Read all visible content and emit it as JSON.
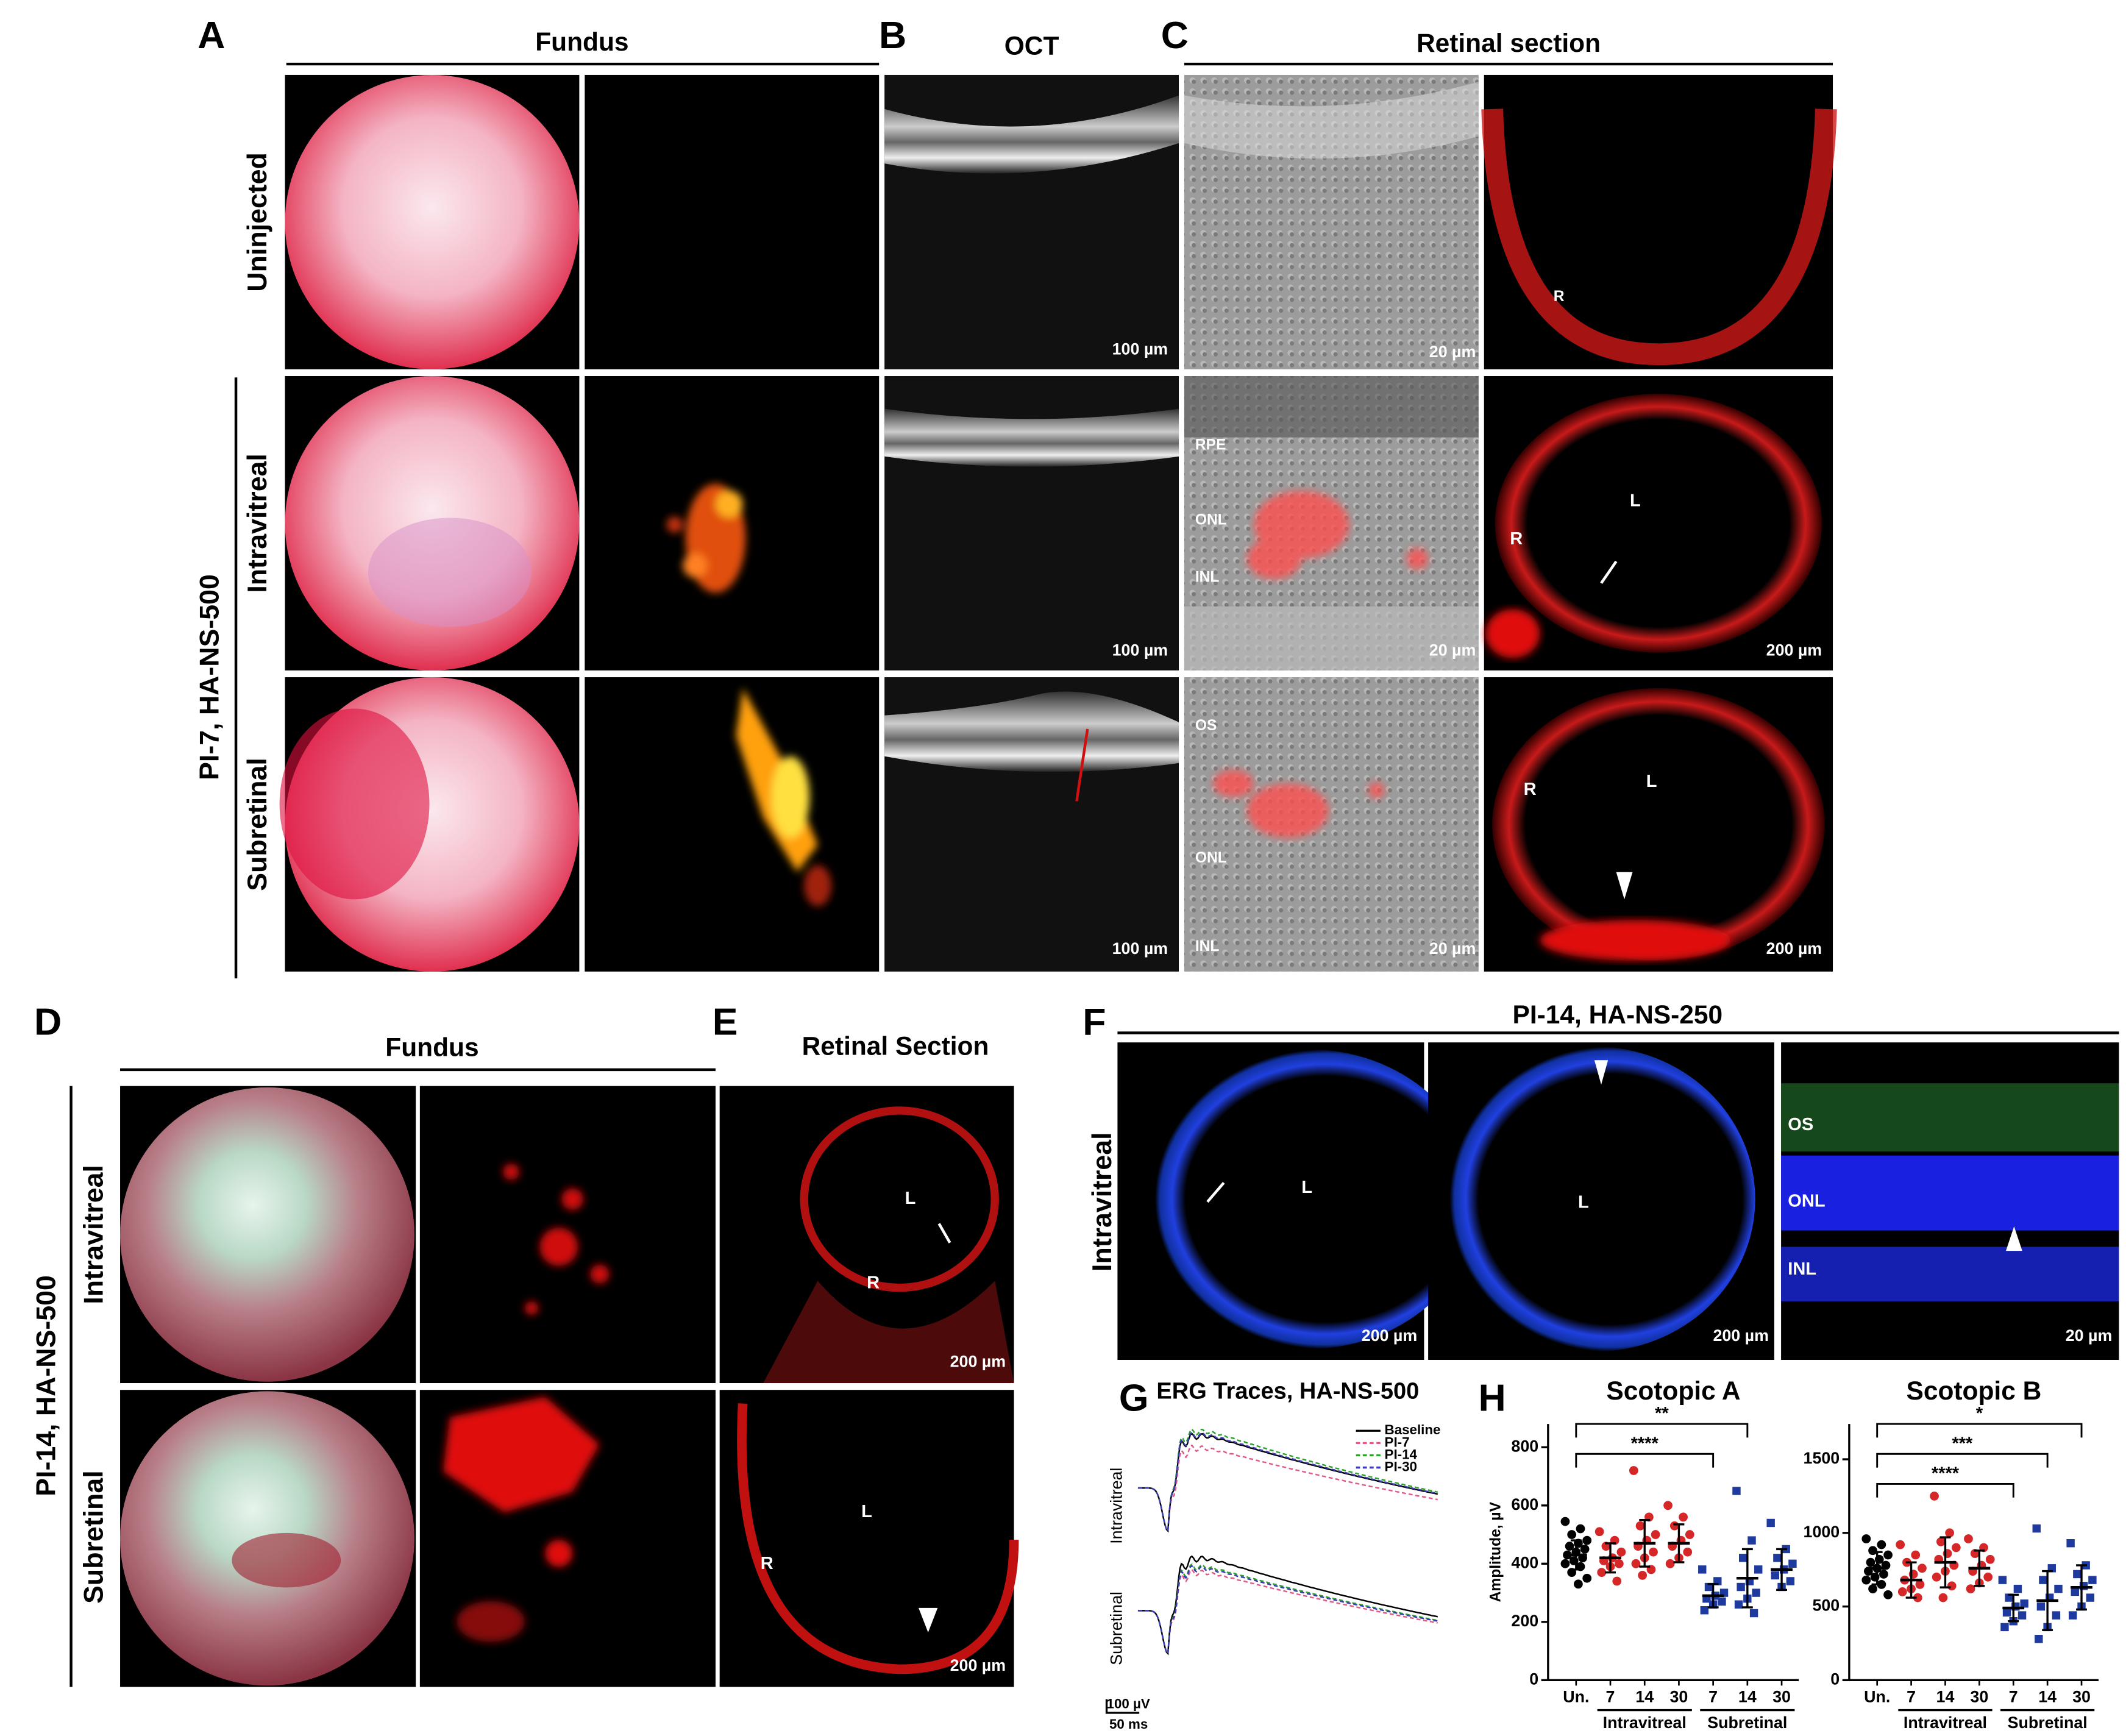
{
  "top": {
    "A": "A",
    "fundus": "Fundus",
    "B": "B",
    "oct": "OCT",
    "C": "C",
    "retinal_section": "Retinal section",
    "rows": [
      "Uninjected",
      "Intravitreal",
      "Subretinal"
    ],
    "group": "PI-7, HA-NS-500",
    "oct_scale": [
      "100 µm",
      "100 µm",
      "100 µm"
    ],
    "section_scale": [
      "20 µm",
      "20 µm",
      "20 µm"
    ],
    "eye_scale": [
      "200 µm",
      "200 µm"
    ],
    "r1_eye": [
      "R"
    ],
    "r2_section": [
      "RPE",
      "ONL",
      "INL"
    ],
    "r2_eye": [
      "L",
      "R"
    ],
    "r3_section": [
      "OS",
      "ONL",
      "INL"
    ],
    "r3_eye": [
      "R",
      "L"
    ]
  },
  "bottom": {
    "D": "D",
    "fundus": "Fundus",
    "E": "E",
    "retinal_section": "Retinal Section",
    "F": "F",
    "f_title": "PI-14, HA-NS-250",
    "f_row": "Intravitreal",
    "rows": [
      "Intravitreal",
      "Subretinal"
    ],
    "group": "PI-14, HA-NS-500",
    "e_labels": [
      [
        "L",
        "R",
        "200 µm"
      ],
      [
        "L",
        "R",
        "200 µm"
      ]
    ],
    "f_labels": [
      [
        "L",
        "200 µm"
      ],
      [
        "L",
        "200 µm"
      ],
      [
        "OS",
        "ONL",
        "INL",
        "20 µm"
      ]
    ]
  },
  "erg": {
    "letter": "G",
    "title": "ERG Traces, HA-NS-500",
    "legend": [
      {
        "name": "Baseline",
        "color": "#000000"
      },
      {
        "name": "PI-7",
        "color": "#e05a8a"
      },
      {
        "name": "PI-14",
        "color": "#2ca02c"
      },
      {
        "name": "PI-30",
        "color": "#3b3bb5"
      }
    ],
    "rows": [
      "Intravitreal",
      "Subretinal"
    ],
    "scale_v": "100 µV",
    "scale_t": "50 ms"
  },
  "H": "H",
  "chart_data": [
    {
      "type": "dotplot",
      "title": "Scotopic A",
      "y_label": "Amplitude, µV",
      "categories": [
        "Un.",
        "7",
        "14",
        "30",
        "7",
        "14",
        "30"
      ],
      "groups": [
        "Intravitreal",
        "Subretinal"
      ],
      "colors": [
        "#000000",
        "#d62728",
        "#d62728",
        "#d62728",
        "#1f3a9e",
        "#1f3a9e",
        "#1f3a9e"
      ],
      "ylim": [
        0,
        880
      ],
      "yticks": [
        0,
        200,
        400,
        600,
        800
      ],
      "significance": [
        "**",
        "****"
      ],
      "points": [
        [
          545,
          520,
          500,
          480,
          470,
          460,
          450,
          440,
          430,
          420,
          410,
          400,
          390,
          370,
          350,
          330
        ],
        [
          510,
          480,
          460,
          440,
          420,
          410,
          400,
          390,
          370,
          340
        ],
        [
          720,
          560,
          530,
          500,
          480,
          460,
          440,
          420,
          400,
          380,
          360
        ],
        [
          600,
          560,
          530,
          500,
          480,
          460,
          440,
          420,
          400
        ],
        [
          380,
          340,
          320,
          300,
          290,
          280,
          270,
          260,
          240
        ],
        [
          650,
          480,
          420,
          380,
          340,
          320,
          300,
          280,
          260,
          230
        ],
        [
          540,
          450,
          420,
          400,
          380,
          360,
          340,
          320
        ]
      ],
      "means": [
        430,
        420,
        470,
        470,
        290,
        350,
        380
      ],
      "sd": [
        50,
        50,
        80,
        65,
        40,
        100,
        70
      ]
    },
    {
      "type": "dotplot",
      "title": "Scotopic B",
      "categories": [
        "Un.",
        "7",
        "14",
        "30",
        "7",
        "14",
        "30"
      ],
      "groups": [
        "Intravitreal",
        "Subretinal"
      ],
      "colors": [
        "#000000",
        "#d62728",
        "#d62728",
        "#d62728",
        "#1f3a9e",
        "#1f3a9e",
        "#1f3a9e"
      ],
      "ylim": [
        0,
        1740
      ],
      "yticks": [
        0,
        500,
        1000,
        1500
      ],
      "significance": [
        "*",
        "***",
        "****"
      ],
      "points": [
        [
          960,
          920,
          880,
          850,
          820,
          800,
          780,
          760,
          740,
          720,
          700,
          680,
          650,
          620,
          580
        ],
        [
          920,
          850,
          800,
          760,
          720,
          680,
          650,
          620,
          600,
          560
        ],
        [
          1250,
          1000,
          940,
          900,
          860,
          820,
          780,
          740,
          700,
          640,
          560
        ],
        [
          960,
          900,
          860,
          820,
          780,
          740,
          700,
          660,
          620
        ],
        [
          680,
          620,
          560,
          520,
          500,
          460,
          440,
          400,
          360
        ],
        [
          1030,
          760,
          680,
          620,
          560,
          500,
          440,
          360,
          280
        ],
        [
          930,
          780,
          720,
          680,
          640,
          600,
          560,
          500,
          440
        ]
      ],
      "means": [
        760,
        680,
        800,
        760,
        490,
        540,
        630
      ],
      "sd": [
        110,
        120,
        170,
        120,
        90,
        200,
        150
      ]
    }
  ]
}
